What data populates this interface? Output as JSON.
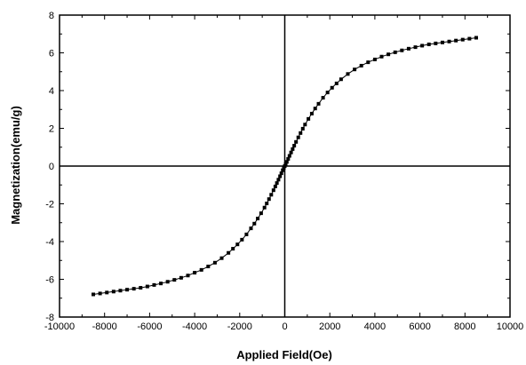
{
  "chart_data": {
    "type": "scatter",
    "xlabel": "Applied Field(Oe)",
    "ylabel": "Magnetization(emu/g)",
    "xlim": [
      -10000,
      10000
    ],
    "ylim": [
      -8,
      8
    ],
    "x_ticks": [
      -10000,
      -8000,
      -6000,
      -4000,
      -2000,
      0,
      2000,
      4000,
      6000,
      8000,
      10000
    ],
    "y_ticks": [
      -8,
      -6,
      -4,
      -2,
      0,
      2,
      4,
      6,
      8
    ],
    "zero_lines": true,
    "grid": false,
    "marker": "square",
    "color": "#000000",
    "series": [
      {
        "x": [
          -8500,
          -8200,
          -7900,
          -7600,
          -7300,
          -7000,
          -6700,
          -6400,
          -6100,
          -5800,
          -5500,
          -5200,
          -4900,
          -4600,
          -4300,
          -4000,
          -3700,
          -3400,
          -3100,
          -2800,
          -2500,
          -2300,
          -2100,
          -1900,
          -1700,
          -1500,
          -1350,
          -1200,
          -1050,
          -900,
          -800,
          -700,
          -600,
          -500,
          -420,
          -350,
          -280,
          -210,
          -150,
          -90,
          -40,
          0,
          40,
          90,
          150,
          210,
          280,
          350,
          420,
          500,
          600,
          700,
          800,
          900,
          1050,
          1200,
          1350,
          1500,
          1700,
          1900,
          2100,
          2300,
          2500,
          2800,
          3100,
          3400,
          3700,
          4000,
          4300,
          4600,
          4900,
          5200,
          5500,
          5800,
          6100,
          6400,
          6700,
          7000,
          7300,
          7600,
          7900,
          8200,
          8500
        ],
        "y": [
          -6.8,
          -6.75,
          -6.7,
          -6.65,
          -6.6,
          -6.55,
          -6.5,
          -6.45,
          -6.38,
          -6.3,
          -6.22,
          -6.13,
          -6.03,
          -5.92,
          -5.8,
          -5.65,
          -5.5,
          -5.32,
          -5.12,
          -4.88,
          -4.6,
          -4.38,
          -4.15,
          -3.9,
          -3.62,
          -3.3,
          -3.05,
          -2.78,
          -2.5,
          -2.2,
          -1.98,
          -1.75,
          -1.52,
          -1.28,
          -1.08,
          -0.9,
          -0.72,
          -0.54,
          -0.38,
          -0.22,
          -0.1,
          0.0,
          0.1,
          0.22,
          0.38,
          0.54,
          0.72,
          0.9,
          1.08,
          1.28,
          1.52,
          1.75,
          1.98,
          2.2,
          2.5,
          2.78,
          3.05,
          3.3,
          3.62,
          3.9,
          4.15,
          4.38,
          4.6,
          4.88,
          5.12,
          5.32,
          5.5,
          5.65,
          5.8,
          5.92,
          6.03,
          6.13,
          6.22,
          6.3,
          6.38,
          6.45,
          6.5,
          6.55,
          6.6,
          6.65,
          6.7,
          6.75,
          6.8
        ]
      }
    ]
  }
}
